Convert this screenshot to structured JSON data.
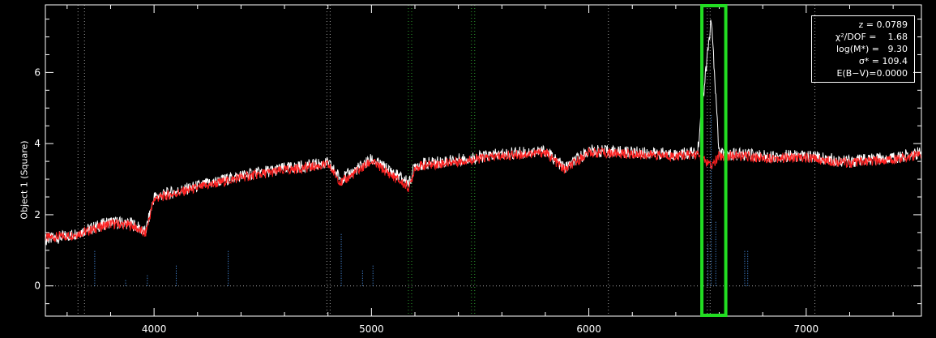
{
  "chart_data": {
    "type": "line",
    "title": "",
    "xlabel": "",
    "ylabel": "Object 1 (Square)",
    "xlim": [
      3500,
      7530
    ],
    "ylim": [
      -0.85,
      7.9
    ],
    "x_ticks": [
      4000,
      5000,
      6000,
      7000
    ],
    "y_ticks": [
      0,
      2,
      4,
      6
    ],
    "series": [
      {
        "color": "#ffffff",
        "role": "observed flux",
        "x": [
          3500,
          3600,
          3700,
          3800,
          3900,
          3960,
          4000,
          4100,
          4200,
          4300,
          4400,
          4600,
          4800,
          4861,
          5000,
          5175,
          5200,
          5400,
          5600,
          5800,
          5890,
          6000,
          6200,
          6400,
          6500,
          6563,
          6600,
          6700,
          6800,
          7000,
          7200,
          7400,
          7530
        ],
        "values": [
          1.3,
          1.4,
          1.6,
          1.8,
          1.75,
          1.5,
          2.5,
          2.65,
          2.8,
          2.95,
          3.1,
          3.3,
          3.45,
          3.0,
          3.55,
          2.9,
          3.4,
          3.55,
          3.7,
          3.8,
          3.3,
          3.8,
          3.75,
          3.7,
          3.75,
          7.5,
          3.7,
          3.7,
          3.65,
          3.65,
          3.5,
          3.6,
          3.75
        ]
      },
      {
        "color": "#ff2020",
        "role": "model fit",
        "x": [
          3500,
          3600,
          3700,
          3800,
          3900,
          3960,
          4000,
          4100,
          4200,
          4300,
          4400,
          4600,
          4800,
          4861,
          5000,
          5175,
          5200,
          5400,
          5600,
          5800,
          5890,
          6000,
          6200,
          6400,
          6500,
          6563,
          6600,
          6700,
          6800,
          7000,
          7200,
          7400,
          7530
        ],
        "values": [
          1.35,
          1.4,
          1.55,
          1.75,
          1.7,
          1.45,
          2.45,
          2.6,
          2.75,
          2.9,
          3.05,
          3.25,
          3.4,
          2.9,
          3.5,
          2.75,
          3.35,
          3.5,
          3.65,
          3.75,
          3.25,
          3.75,
          3.7,
          3.65,
          3.7,
          3.35,
          3.65,
          3.65,
          3.6,
          3.6,
          3.45,
          3.55,
          3.7
        ]
      },
      {
        "color": "#4f9fff",
        "role": "emission lines (dotted)",
        "x": [
          3727,
          3869,
          3969,
          4102,
          4341,
          4861,
          4959,
          5007,
          6548,
          6563,
          6584,
          6717,
          6731
        ],
        "values": [
          1.0,
          0.2,
          0.3,
          0.6,
          1.0,
          1.5,
          0.45,
          0.6,
          1.2,
          4.8,
          1.8,
          1.0,
          1.0
        ]
      }
    ],
    "vertical_markers": [
      {
        "x": 3650,
        "color": "#a0a0a0"
      },
      {
        "x": 3680,
        "color": "#a0a0a0"
      },
      {
        "x": 4795,
        "color": "#a0a0a0"
      },
      {
        "x": 4810,
        "color": "#a0a0a0"
      },
      {
        "x": 5170,
        "color": "#2ea02e"
      },
      {
        "x": 5185,
        "color": "#2ea02e"
      },
      {
        "x": 5460,
        "color": "#2ea02e"
      },
      {
        "x": 5475,
        "color": "#2ea02e"
      },
      {
        "x": 6090,
        "color": "#a0a0a0"
      },
      {
        "x": 6545,
        "color": "#a0a0a0"
      },
      {
        "x": 6558,
        "color": "#a0a0a0"
      },
      {
        "x": 7040,
        "color": "#a0a0a0"
      }
    ],
    "zero_line_color": "#a0a0a0",
    "highlight_box": {
      "x_range": [
        6520,
        6630
      ],
      "color": "#22dd22"
    },
    "grid": false
  },
  "info": {
    "z_label": "z =",
    "z_value": "0.0789",
    "chi_label": "χ²/DOF =",
    "chi_value": "1.68",
    "logm_label": "log(M*) =",
    "logm_value": "9.30",
    "sigma_label": "σ* =",
    "sigma_value": "109.4",
    "ebv": "E(B−V)=0.0000"
  }
}
